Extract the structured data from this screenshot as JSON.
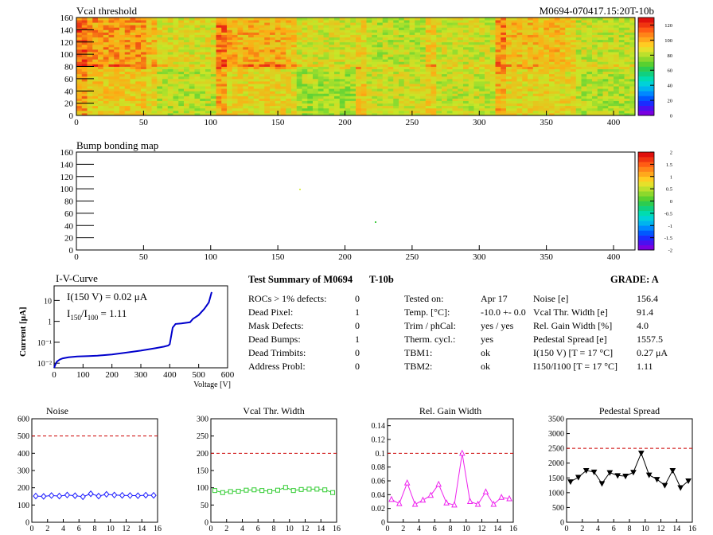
{
  "header": {
    "title_left": "Vcal threshold",
    "title_right": "M0694-070417.15:20T-10b"
  },
  "vcal_map": {
    "title": "Vcal threshold",
    "xticks": [
      "0",
      "50",
      "100",
      "150",
      "200",
      "250",
      "300",
      "350",
      "400"
    ],
    "yticks": [
      "0",
      "20",
      "40",
      "60",
      "80",
      "100",
      "120",
      "140",
      "160"
    ],
    "xlim": [
      0,
      416
    ],
    "ylim": [
      0,
      160
    ],
    "zticks": [
      "0",
      "20",
      "40",
      "60",
      "80",
      "100",
      "120"
    ],
    "zlim": [
      0,
      130
    ]
  },
  "bump_map": {
    "title": "Bump bonding map",
    "xticks": [
      "0",
      "50",
      "100",
      "150",
      "200",
      "250",
      "300",
      "350",
      "400"
    ],
    "yticks": [
      "0",
      "20",
      "40",
      "60",
      "80",
      "100",
      "120",
      "140",
      "160"
    ],
    "zticks": [
      "-2",
      "-1.5",
      "-1",
      "-0.5",
      "0",
      "0.5",
      "1",
      "1.5",
      "2"
    ],
    "zlim": [
      -2,
      2
    ]
  },
  "iv": {
    "title": "I-V-Curve",
    "ylabel": "Current [μA]",
    "xlabel": "Voltage [V]",
    "xticks": [
      "0",
      "100",
      "200",
      "300",
      "400",
      "500",
      "600"
    ],
    "yticks": [
      "10⁻²",
      "10⁻¹",
      "1",
      "10"
    ],
    "annot1": "I(150 V) = 0.02 μA",
    "annot2_a": "I",
    "annot2_sub1": "150",
    "annot2_b": "/I",
    "annot2_sub2": "100",
    "annot2_c": " =  1.11"
  },
  "summary": {
    "title": "Test Summary of M0694",
    "code": "T-10b",
    "grade_label": "GRADE:  A",
    "left": [
      {
        "label": "ROCs > 1% defects:",
        "value": "0"
      },
      {
        "label": "Dead Pixel:",
        "value": "1"
      },
      {
        "label": "Mask Defects:",
        "value": "0"
      },
      {
        "label": "Dead Bumps:",
        "value": "1"
      },
      {
        "label": "Dead Trimbits:",
        "value": "0"
      },
      {
        "label": "Address Probl:",
        "value": "0"
      }
    ],
    "middle": [
      {
        "label": "Tested on:",
        "value": "Apr 17"
      },
      {
        "label": "Temp. [°C]:",
        "value": "-10.0 +- 0.0"
      },
      {
        "label": "Trim / phCal:",
        "value": "yes / yes"
      },
      {
        "label": "Therm. cycl.:",
        "value": "yes"
      },
      {
        "label": "TBM1:",
        "value": "ok"
      },
      {
        "label": "TBM2:",
        "value": "ok"
      }
    ],
    "right": [
      {
        "label": "Noise [e]",
        "value": "156.4"
      },
      {
        "label": "Vcal Thr. Width [e]",
        "value": "91.4"
      },
      {
        "label": "Rel. Gain Width [%]",
        "value": "4.0"
      },
      {
        "label": "Pedestal Spread [e]",
        "value": "1557.5"
      },
      {
        "label": "I(150 V) [T = 17 °C]",
        "value": "0.27 μA"
      },
      {
        "label": "I150/I100  [T = 17 °C]",
        "value": "1.11"
      }
    ]
  },
  "colors": {
    "noise": "#1a1aff",
    "vcal": "#33cc33",
    "gain": "#ee22ee",
    "pedestal": "#000000",
    "limit": "#cc0000",
    "iv": "#0000cc"
  },
  "chart_data": [
    {
      "type": "heatmap",
      "title": "Vcal threshold",
      "xlim": [
        0,
        416
      ],
      "ylim": [
        0,
        160
      ],
      "description_values": "16 ROCs (2 rows x 8), values ~80-120"
    },
    {
      "type": "line",
      "title": "I-V-Curve",
      "xlabel": "Voltage [V]",
      "ylabel": "Current [μA]",
      "xlim": [
        0,
        600
      ],
      "ylog": true,
      "ylim": [
        0.006,
        50
      ],
      "x": [
        0,
        5,
        10,
        20,
        30,
        50,
        80,
        120,
        150,
        200,
        250,
        300,
        350,
        380,
        395,
        400,
        410,
        420,
        440,
        470,
        480,
        500,
        520,
        535,
        545
      ],
      "y": [
        0.006,
        0.009,
        0.012,
        0.015,
        0.017,
        0.019,
        0.021,
        0.022,
        0.023,
        0.026,
        0.032,
        0.04,
        0.052,
        0.062,
        0.07,
        0.08,
        0.5,
        0.75,
        0.8,
        0.9,
        1.3,
        2.0,
        4.0,
        8.0,
        25.0
      ]
    },
    {
      "type": "line",
      "title": "Noise",
      "xlim": [
        0,
        16
      ],
      "ylim": [
        0,
        600
      ],
      "xticks": [
        "0",
        "2",
        "4",
        "6",
        "8",
        "10",
        "12",
        "14",
        "16"
      ],
      "yticks": [
        "0",
        "100",
        "200",
        "300",
        "400",
        "500",
        "600"
      ],
      "limit": 500,
      "x": [
        0.5,
        1.5,
        2.5,
        3.5,
        4.5,
        5.5,
        6.5,
        7.5,
        8.5,
        9.5,
        10.5,
        11.5,
        12.5,
        13.5,
        14.5,
        15.5
      ],
      "y": [
        152,
        150,
        155,
        152,
        158,
        154,
        148,
        165,
        152,
        162,
        158,
        156,
        155,
        154,
        157,
        156
      ]
    },
    {
      "type": "line",
      "title": "Vcal Thr. Width",
      "xlim": [
        0,
        16
      ],
      "ylim": [
        0,
        300
      ],
      "xticks": [
        "0",
        "2",
        "4",
        "6",
        "8",
        "10",
        "12",
        "14",
        "16"
      ],
      "yticks": [
        "0",
        "50",
        "100",
        "150",
        "200",
        "250",
        "300"
      ],
      "limit": 200,
      "x": [
        0.5,
        1.5,
        2.5,
        3.5,
        4.5,
        5.5,
        6.5,
        7.5,
        8.5,
        9.5,
        10.5,
        11.5,
        12.5,
        13.5,
        14.5,
        15.5
      ],
      "y": [
        92,
        86,
        89,
        90,
        93,
        94,
        92,
        90,
        93,
        101,
        92,
        95,
        96,
        96,
        94,
        86
      ]
    },
    {
      "type": "line",
      "title": "Rel. Gain Width",
      "xlim": [
        0,
        16
      ],
      "ylim": [
        0,
        0.15
      ],
      "xticks": [
        "0",
        "2",
        "4",
        "6",
        "8",
        "10",
        "12",
        "14",
        "16"
      ],
      "yticks": [
        "0",
        "0.02",
        "0.04",
        "0.06",
        "0.08",
        "0.1",
        "0.12",
        "0.14"
      ],
      "limit": 0.1,
      "x": [
        0.5,
        1.5,
        2.5,
        3.5,
        4.5,
        5.5,
        6.5,
        7.5,
        8.5,
        9.5,
        10.5,
        11.5,
        12.5,
        13.5,
        14.5,
        15.5
      ],
      "y": [
        0.033,
        0.027,
        0.057,
        0.026,
        0.032,
        0.039,
        0.055,
        0.028,
        0.025,
        0.1,
        0.03,
        0.026,
        0.044,
        0.026,
        0.036,
        0.034
      ]
    },
    {
      "type": "line",
      "title": "Pedestal Spread",
      "xlim": [
        0,
        16
      ],
      "ylim": [
        0,
        3500
      ],
      "xticks": [
        "0",
        "2",
        "4",
        "6",
        "8",
        "10",
        "12",
        "14",
        "16"
      ],
      "yticks": [
        "0",
        "500",
        "1000",
        "1500",
        "2000",
        "2500",
        "3000",
        "3500"
      ],
      "limit": 2500,
      "x": [
        0.5,
        1.5,
        2.5,
        3.5,
        4.5,
        5.5,
        6.5,
        7.5,
        8.5,
        9.5,
        10.5,
        11.5,
        12.5,
        13.5,
        14.5,
        15.5
      ],
      "y": [
        1370,
        1520,
        1750,
        1700,
        1310,
        1680,
        1580,
        1560,
        1690,
        2340,
        1600,
        1450,
        1250,
        1750,
        1170,
        1400
      ]
    }
  ]
}
